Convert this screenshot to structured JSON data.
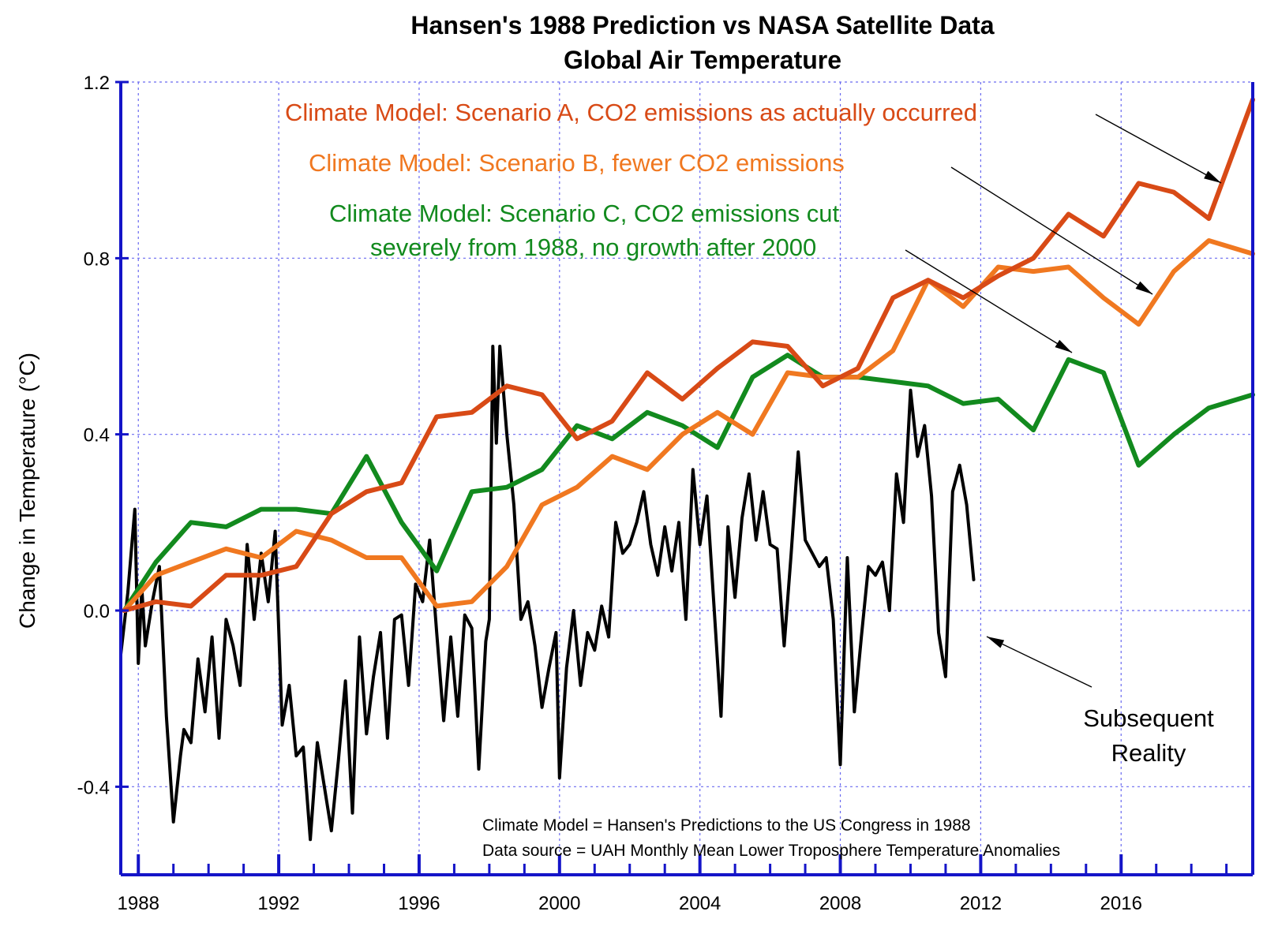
{
  "chart_data": {
    "type": "line",
    "title": "Hansen's 1988 Prediction vs NASA Satellite Data",
    "subtitle": "Global Air Temperature",
    "xlabel": "",
    "ylabel": "Change in Temperature (°C)",
    "xlim": [
      1987.5,
      2019.75
    ],
    "ylim": [
      -0.6,
      1.2
    ],
    "x_ticks": [
      "1988",
      "1992",
      "1996",
      "2000",
      "2004",
      "2008",
      "2012",
      "2016"
    ],
    "y_ticks": [
      "1.2",
      "0.8",
      "0.4",
      "0.0",
      "-0.4"
    ],
    "grid": true,
    "series": [
      {
        "name": "Climate Model: Scenario A, CO2 emissions as actually occurred",
        "color": "#d84a16",
        "x": [
          1987.6,
          1988.5,
          1989.5,
          1990.5,
          1991.5,
          1992.5,
          1993.5,
          1994.5,
          1995.5,
          1996.5,
          1997.5,
          1998.5,
          1999.5,
          2000.5,
          2001.5,
          2002.5,
          2003.5,
          2004.5,
          2005.5,
          2006.5,
          2007.5,
          2008.5,
          2009.5,
          2010.5,
          2011.5,
          2012.5,
          2013.5,
          2014.5,
          2015.5,
          2016.5,
          2017.5,
          2018.5,
          2019.75
        ],
        "y": [
          0.0,
          0.02,
          0.01,
          0.08,
          0.08,
          0.1,
          0.22,
          0.27,
          0.29,
          0.44,
          0.45,
          0.51,
          0.49,
          0.39,
          0.43,
          0.54,
          0.48,
          0.55,
          0.61,
          0.6,
          0.51,
          0.55,
          0.71,
          0.75,
          0.71,
          0.76,
          0.8,
          0.9,
          0.85,
          0.97,
          0.95,
          0.89,
          1.16
        ]
      },
      {
        "name": "Climate Model: Scenario B, fewer CO2 emissions",
        "color": "#f07820",
        "x": [
          1987.6,
          1988.5,
          1989.5,
          1990.5,
          1991.5,
          1992.5,
          1993.5,
          1994.5,
          1995.5,
          1996.5,
          1997.5,
          1998.5,
          1999.5,
          2000.5,
          2001.5,
          2002.5,
          2003.5,
          2004.5,
          2005.5,
          2006.5,
          2007.5,
          2008.5,
          2009.5,
          2010.5,
          2011.5,
          2012.5,
          2013.5,
          2014.5,
          2015.5,
          2016.5,
          2017.5,
          2018.5,
          2019.75
        ],
        "y": [
          0.0,
          0.08,
          0.11,
          0.14,
          0.12,
          0.18,
          0.16,
          0.12,
          0.12,
          0.01,
          0.02,
          0.1,
          0.24,
          0.28,
          0.35,
          0.32,
          0.4,
          0.45,
          0.4,
          0.54,
          0.53,
          0.53,
          0.59,
          0.75,
          0.69,
          0.78,
          0.77,
          0.78,
          0.71,
          0.65,
          0.77,
          0.84,
          0.81
        ]
      },
      {
        "name": "Climate Model: Scenario C, CO2 emissions cut severely from 1988, no growth after 2000",
        "color": "#128a1e",
        "x": [
          1987.6,
          1988.5,
          1989.5,
          1990.5,
          1991.5,
          1992.5,
          1993.5,
          1994.5,
          1995.5,
          1996.5,
          1997.5,
          1998.5,
          1999.5,
          2000.5,
          2001.5,
          2002.5,
          2003.5,
          2004.5,
          2005.5,
          2006.5,
          2007.5,
          2008.5,
          2009.5,
          2010.5,
          2011.5,
          2012.5,
          2013.5,
          2014.5,
          2015.5,
          2016.5,
          2017.5,
          2018.5,
          2019.75
        ],
        "y": [
          0.0,
          0.11,
          0.2,
          0.19,
          0.23,
          0.23,
          0.22,
          0.35,
          0.2,
          0.09,
          0.27,
          0.28,
          0.32,
          0.42,
          0.39,
          0.45,
          0.42,
          0.37,
          0.53,
          0.58,
          0.53,
          0.53,
          0.52,
          0.51,
          0.47,
          0.48,
          0.41,
          0.57,
          0.54,
          0.33,
          0.4,
          0.46,
          0.49
        ]
      },
      {
        "name": "Subsequent Reality",
        "color": "#000000",
        "x": [
          1987.5,
          1987.7,
          1987.9,
          1988.0,
          1988.1,
          1988.2,
          1988.4,
          1988.6,
          1988.8,
          1989.0,
          1989.2,
          1989.3,
          1989.5,
          1989.7,
          1989.9,
          1990.1,
          1990.3,
          1990.5,
          1990.7,
          1990.9,
          1991.1,
          1991.3,
          1991.5,
          1991.7,
          1991.9,
          1992.1,
          1992.3,
          1992.5,
          1992.7,
          1992.9,
          1993.1,
          1993.3,
          1993.5,
          1993.7,
          1993.9,
          1994.1,
          1994.3,
          1994.5,
          1994.7,
          1994.9,
          1995.1,
          1995.3,
          1995.5,
          1995.7,
          1995.9,
          1996.1,
          1996.3,
          1996.5,
          1996.7,
          1996.9,
          1997.1,
          1997.3,
          1997.5,
          1997.7,
          1997.9,
          1998.0,
          1998.1,
          1998.2,
          1998.3,
          1998.5,
          1998.7,
          1998.9,
          1999.1,
          1999.3,
          1999.5,
          1999.7,
          1999.9,
          2000.0,
          2000.2,
          2000.4,
          2000.6,
          2000.8,
          2001.0,
          2001.2,
          2001.4,
          2001.6,
          2001.8,
          2002.0,
          2002.2,
          2002.4,
          2002.6,
          2002.8,
          2003.0,
          2003.2,
          2003.4,
          2003.6,
          2003.8,
          2004.0,
          2004.2,
          2004.4,
          2004.6,
          2004.8,
          2005.0,
          2005.2,
          2005.4,
          2005.6,
          2005.8,
          2006.0,
          2006.2,
          2006.4,
          2006.6,
          2006.8,
          2007.0,
          2007.2,
          2007.4,
          2007.6,
          2007.8,
          2008.0,
          2008.2,
          2008.4,
          2008.6,
          2008.8,
          2009.0,
          2009.2,
          2009.4,
          2009.6,
          2009.8,
          2010.0,
          2010.2,
          2010.4,
          2010.6,
          2010.8,
          2011.0,
          2011.2,
          2011.4,
          2011.6,
          2011.8
        ],
        "y": [
          -0.1,
          0.04,
          0.23,
          -0.12,
          0.05,
          -0.08,
          0.02,
          0.1,
          -0.24,
          -0.48,
          -0.33,
          -0.27,
          -0.3,
          -0.11,
          -0.23,
          -0.06,
          -0.29,
          -0.02,
          -0.08,
          -0.17,
          0.15,
          -0.02,
          0.13,
          0.02,
          0.18,
          -0.26,
          -0.17,
          -0.33,
          -0.31,
          -0.52,
          -0.3,
          -0.4,
          -0.5,
          -0.34,
          -0.16,
          -0.46,
          -0.06,
          -0.28,
          -0.15,
          -0.05,
          -0.29,
          -0.02,
          -0.01,
          -0.17,
          0.06,
          0.02,
          0.16,
          -0.05,
          -0.25,
          -0.06,
          -0.24,
          -0.01,
          -0.04,
          -0.36,
          -0.07,
          -0.02,
          0.6,
          0.38,
          0.6,
          0.4,
          0.24,
          -0.02,
          0.02,
          -0.08,
          -0.22,
          -0.13,
          -0.05,
          -0.38,
          -0.13,
          0.0,
          -0.17,
          -0.05,
          -0.09,
          0.01,
          -0.06,
          0.2,
          0.13,
          0.15,
          0.2,
          0.27,
          0.15,
          0.08,
          0.19,
          0.09,
          0.2,
          -0.02,
          0.32,
          0.15,
          0.26,
          0.01,
          -0.24,
          0.19,
          0.03,
          0.21,
          0.31,
          0.16,
          0.27,
          0.15,
          0.14,
          -0.08,
          0.13,
          0.36,
          0.16,
          0.13,
          0.1,
          0.12,
          -0.02,
          -0.35,
          0.12,
          -0.23,
          -0.06,
          0.1,
          0.08,
          0.11,
          0.0,
          0.31,
          0.2,
          0.5,
          0.35,
          0.42,
          0.26,
          -0.05,
          -0.15,
          0.27,
          0.33,
          0.24,
          0.07
        ]
      }
    ],
    "annotations": [
      {
        "text": "Climate Model: Scenario A, CO2 emissions as actually occurred",
        "color": "#d84a16"
      },
      {
        "text": "Climate Model: Scenario B, fewer CO2 emissions",
        "color": "#f07820"
      },
      {
        "text": "Climate Model: Scenario C, CO2 emissions cut",
        "color": "#128a1e"
      },
      {
        "text": "severely from 1988, no growth after 2000",
        "color": "#128a1e"
      },
      {
        "text": "Subsequent",
        "color": "#000000"
      },
      {
        "text": "Reality",
        "color": "#000000"
      }
    ],
    "notes": [
      "Climate Model = Hansen's Predictions to the US Congress in 1988",
      "Data source = UAH Monthly Mean Lower Troposphere Temperature Anomalies"
    ],
    "colors": {
      "axis": "#1414c8",
      "grid": "#6a6af0",
      "reality": "#000000"
    }
  }
}
